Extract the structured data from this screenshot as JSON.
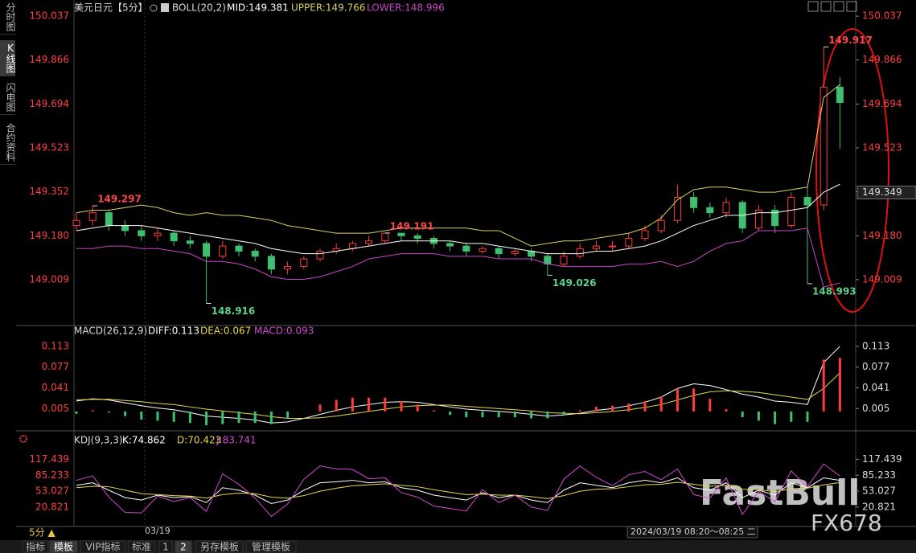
{
  "chart_data": [
    {
      "type": "candlestick",
      "title": "美元日元【5分】",
      "indicator": "BOLL(20,2)",
      "candles": {
        "open": [
          149.22,
          149.24,
          149.27,
          149.22,
          149.2,
          149.18,
          149.19,
          149.16,
          149.15,
          149.1,
          149.14,
          149.12,
          149.1,
          149.05,
          149.06,
          149.09,
          149.12,
          149.13,
          149.15,
          149.16,
          149.19,
          149.18,
          149.17,
          149.15,
          149.14,
          149.12,
          149.13,
          149.11,
          149.12,
          149.1,
          149.07,
          149.1,
          149.13,
          149.14,
          149.14,
          149.17,
          149.2,
          149.24,
          149.33,
          149.29,
          149.27,
          149.31,
          149.21,
          149.28,
          149.22,
          149.33,
          149.3,
          149.76
        ],
        "high": [
          149.27,
          149.297,
          149.28,
          149.24,
          149.22,
          149.21,
          149.2,
          149.18,
          149.16,
          149.16,
          149.15,
          149.13,
          149.11,
          149.08,
          149.1,
          149.13,
          149.15,
          149.16,
          149.18,
          149.191,
          149.19,
          149.19,
          149.18,
          149.16,
          149.15,
          149.14,
          149.14,
          149.13,
          149.13,
          149.11,
          149.12,
          149.15,
          149.16,
          149.16,
          149.19,
          149.22,
          149.26,
          149.38,
          149.35,
          149.31,
          149.33,
          149.32,
          149.3,
          149.3,
          149.35,
          149.37,
          149.917,
          149.8
        ],
        "low": [
          149.2,
          149.22,
          149.2,
          149.18,
          149.16,
          149.16,
          149.14,
          149.13,
          148.916,
          149.09,
          149.1,
          149.08,
          149.03,
          149.03,
          149.05,
          149.08,
          149.11,
          149.12,
          149.14,
          149.15,
          149.16,
          149.15,
          149.13,
          149.12,
          149.1,
          149.11,
          149.09,
          149.1,
          149.08,
          149.026,
          149.06,
          149.09,
          149.12,
          149.12,
          149.13,
          149.16,
          149.19,
          149.23,
          149.27,
          149.25,
          149.25,
          149.19,
          149.2,
          149.19,
          149.21,
          148.993,
          149.28,
          149.52
        ],
        "close": [
          149.24,
          149.27,
          149.22,
          149.2,
          149.18,
          149.19,
          149.16,
          149.15,
          149.1,
          149.14,
          149.12,
          149.1,
          149.05,
          149.06,
          149.09,
          149.12,
          149.13,
          149.15,
          149.16,
          149.19,
          149.18,
          149.17,
          149.15,
          149.14,
          149.12,
          149.13,
          149.11,
          149.12,
          149.1,
          149.07,
          149.1,
          149.13,
          149.14,
          149.14,
          149.17,
          149.2,
          149.24,
          149.33,
          149.29,
          149.27,
          149.31,
          149.21,
          149.28,
          149.22,
          149.33,
          149.3,
          149.76,
          149.7
        ]
      },
      "up_color": "#ff3c3c",
      "down_color": "#3fbf6f",
      "series": [
        {
          "name": "MID:149.381",
          "color": "#ffffff",
          "values": [
            149.2,
            149.21,
            149.22,
            149.22,
            149.22,
            149.21,
            149.2,
            149.19,
            149.18,
            149.17,
            149.16,
            149.15,
            149.13,
            149.12,
            149.11,
            149.11,
            149.12,
            149.13,
            149.14,
            149.15,
            149.16,
            149.16,
            149.16,
            149.16,
            149.15,
            149.15,
            149.14,
            149.13,
            149.12,
            149.11,
            149.11,
            149.11,
            149.12,
            149.12,
            149.13,
            149.14,
            149.16,
            149.19,
            149.22,
            149.24,
            149.26,
            149.26,
            149.27,
            149.27,
            149.28,
            149.29,
            149.35,
            149.381
          ]
        },
        {
          "name": "UPPER:149.766",
          "color": "#d8cf6a",
          "values": [
            149.27,
            149.28,
            149.28,
            149.29,
            149.3,
            149.29,
            149.27,
            149.26,
            149.27,
            149.26,
            149.26,
            149.25,
            149.24,
            149.22,
            149.21,
            149.2,
            149.19,
            149.19,
            149.19,
            149.2,
            149.21,
            149.21,
            149.21,
            149.21,
            149.21,
            149.2,
            149.2,
            149.17,
            149.14,
            149.15,
            149.16,
            149.16,
            149.17,
            149.18,
            149.19,
            149.21,
            149.25,
            149.32,
            149.36,
            149.37,
            149.37,
            149.36,
            149.35,
            149.35,
            149.36,
            149.37,
            149.72,
            149.77
          ]
        },
        {
          "name": "LOWER:148.996",
          "color": "#c846c8",
          "values": [
            149.13,
            149.13,
            149.14,
            149.14,
            149.13,
            149.13,
            149.12,
            149.11,
            149.08,
            149.08,
            149.07,
            149.05,
            149.02,
            149.01,
            149.01,
            149.02,
            149.04,
            149.06,
            149.09,
            149.1,
            149.11,
            149.11,
            149.11,
            149.1,
            149.1,
            149.1,
            149.09,
            149.09,
            149.09,
            149.07,
            149.06,
            149.06,
            149.06,
            149.06,
            149.07,
            149.07,
            149.08,
            149.06,
            149.08,
            149.12,
            149.15,
            149.16,
            149.2,
            149.2,
            149.2,
            149.21,
            148.98,
            148.996
          ]
        }
      ],
      "ylim": [
        148.836,
        150.075
      ],
      "yticks": [
        150.037,
        149.866,
        149.694,
        149.523,
        149.352,
        {
          "value": 149.18,
          "label": "149.180"
        },
        149.009
      ],
      "last_price": 149.349
    },
    {
      "type": "macd",
      "title": "MACD(26,12,9)",
      "series": [
        {
          "name": "DIFF:0.113",
          "color": "#ffffff",
          "values": [
            0.018,
            0.022,
            0.02,
            0.015,
            0.01,
            0.006,
            0.003,
            -0.002,
            -0.008,
            -0.01,
            -0.012,
            -0.015,
            -0.02,
            -0.018,
            -0.012,
            -0.005,
            0.002,
            0.008,
            0.012,
            0.016,
            0.017,
            0.016,
            0.012,
            0.008,
            0.004,
            0.002,
            0,
            -0.002,
            -0.005,
            -0.008,
            -0.006,
            -0.003,
            0.002,
            0.005,
            0.01,
            0.016,
            0.025,
            0.04,
            0.048,
            0.045,
            0.038,
            0.03,
            0.025,
            0.018,
            0.016,
            0.012,
            0.085,
            0.113
          ]
        },
        {
          "name": "DEA:0.067",
          "color": "#e6d84a",
          "values": [
            0.02,
            0.021,
            0.021,
            0.019,
            0.017,
            0.014,
            0.012,
            0.008,
            0.004,
            0.001,
            -0.002,
            -0.005,
            -0.009,
            -0.012,
            -0.012,
            -0.011,
            -0.008,
            -0.004,
            0,
            0.004,
            0.008,
            0.01,
            0.011,
            0.011,
            0.009,
            0.007,
            0.005,
            0.003,
            0.001,
            -0.002,
            -0.003,
            -0.004,
            -0.002,
            0,
            0.003,
            0.007,
            0.012,
            0.02,
            0.028,
            0.034,
            0.036,
            0.035,
            0.033,
            0.029,
            0.025,
            0.021,
            0.04,
            0.067
          ]
        },
        {
          "name": "MACD:0.093",
          "color": "#d04ad0",
          "bars": true,
          "up_color": "#ff3c3c",
          "down_color": "#3fbf6f",
          "values": [
            -0.004,
            0.002,
            -0.002,
            -0.008,
            -0.014,
            -0.016,
            -0.018,
            -0.02,
            -0.024,
            -0.022,
            -0.02,
            -0.02,
            -0.022,
            -0.012,
            0,
            0.012,
            0.02,
            0.024,
            0.024,
            0.024,
            0.018,
            0.012,
            0.002,
            -0.006,
            -0.01,
            -0.01,
            -0.01,
            -0.01,
            -0.012,
            -0.012,
            -0.006,
            0.002,
            0.008,
            0.01,
            0.014,
            0.018,
            0.026,
            0.04,
            0.04,
            0.022,
            0.004,
            -0.01,
            -0.016,
            -0.022,
            -0.018,
            -0.018,
            0.09,
            0.093
          ]
        }
      ],
      "ylim": [
        -0.028,
        0.131
      ],
      "yticks": [
        0.113,
        0.077,
        0.041,
        0.005
      ]
    },
    {
      "type": "line",
      "title": "KDJ(9,3,3)",
      "series": [
        {
          "name": "K:74.862",
          "color": "#ffffff",
          "values": [
            65,
            70,
            55,
            40,
            35,
            45,
            40,
            42,
            30,
            60,
            55,
            45,
            28,
            35,
            55,
            70,
            72,
            75,
            70,
            72,
            60,
            55,
            45,
            40,
            35,
            50,
            40,
            45,
            35,
            30,
            55,
            70,
            65,
            60,
            70,
            75,
            70,
            80,
            60,
            55,
            70,
            40,
            55,
            45,
            70,
            60,
            80,
            74.862
          ]
        },
        {
          "name": "D:70.423",
          "color": "#e6d84a",
          "values": [
            60,
            63,
            62,
            55,
            48,
            46,
            44,
            43,
            39,
            46,
            49,
            48,
            41,
            39,
            44,
            53,
            59,
            64,
            66,
            68,
            65,
            62,
            56,
            51,
            46,
            47,
            45,
            45,
            42,
            38,
            44,
            53,
            57,
            58,
            62,
            66,
            67,
            71,
            67,
            63,
            65,
            57,
            56,
            52,
            58,
            59,
            66,
            70.423
          ]
        },
        {
          "name": "J:83.741",
          "color": "#d04ad0",
          "values": [
            75,
            84,
            41,
            10,
            9,
            43,
            32,
            40,
            12,
            88,
            67,
            39,
            2,
            27,
            77,
            104,
            98,
            97,
            78,
            80,
            50,
            41,
            23,
            18,
            13,
            56,
            30,
            45,
            21,
            14,
            77,
            104,
            81,
            64,
            86,
            93,
            76,
            98,
            46,
            39,
            80,
            6,
            53,
            31,
            94,
            62,
            108,
            83.741
          ]
        }
      ],
      "ylim": [
        -18.4,
        142.6
      ],
      "yticks": [
        117.439,
        85.233,
        53.027,
        20.821
      ]
    }
  ],
  "ui": {
    "sidebar": [
      "分时图",
      "K线图",
      "闪电图",
      "合约资料"
    ],
    "period": "5分 ▲",
    "date_label": "03/19",
    "time_range": "2024/03/19 08:20～08:25 二",
    "tabs": [
      "指标",
      "模板",
      "VIP指标",
      "标准",
      "1",
      "2",
      "另存模板",
      "管理模板"
    ],
    "watermark": [
      "FastBull",
      "FX678"
    ]
  }
}
